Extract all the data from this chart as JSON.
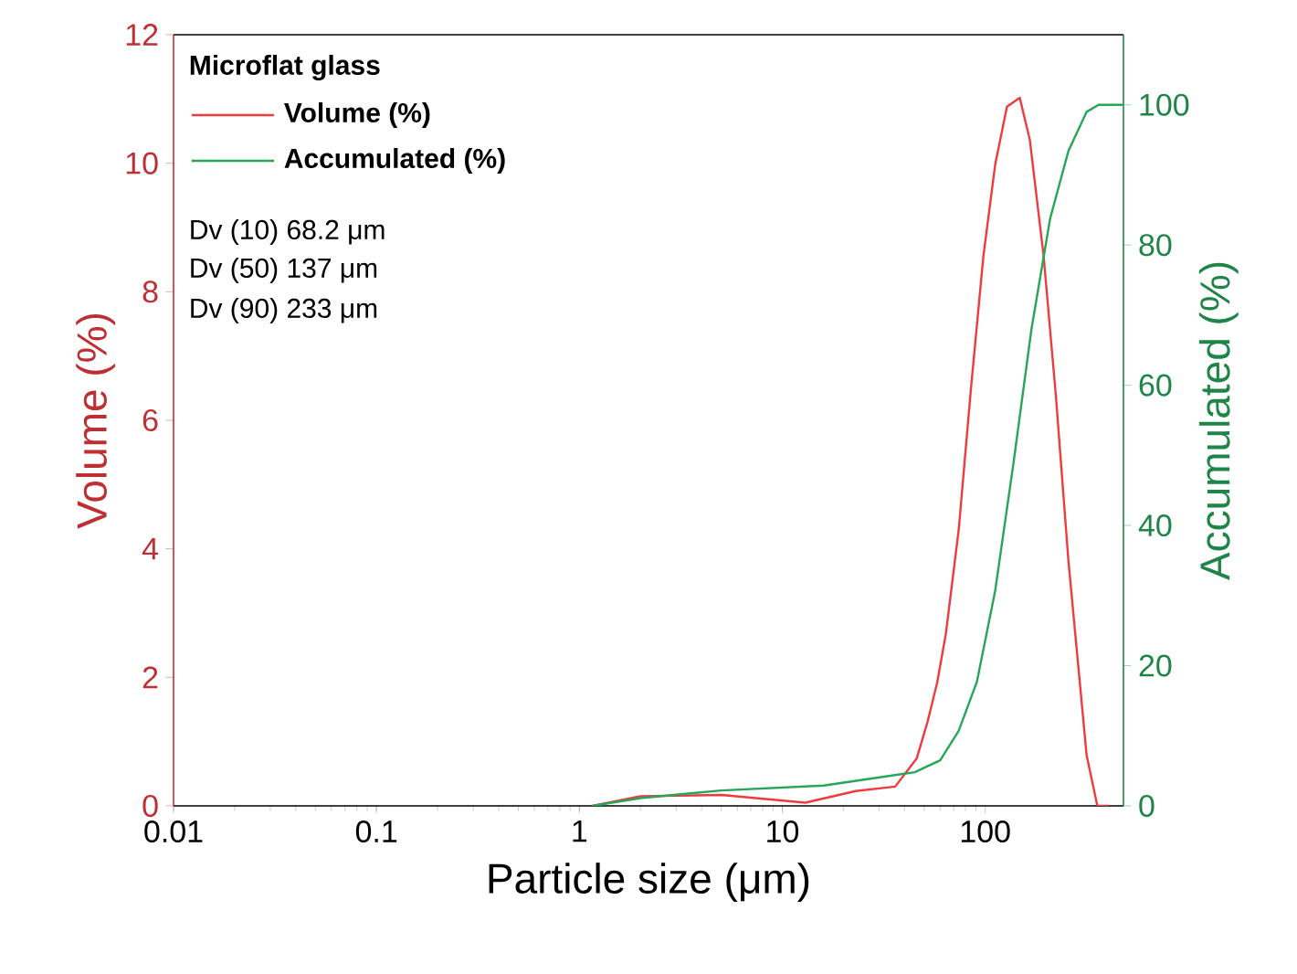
{
  "chart_data": {
    "type": "line",
    "xlabel": "Particle size (μm)",
    "ylabel": "Volume (%)",
    "y2label": "Accumulated (%)",
    "legend_title": "Microflat glass",
    "legend": "top left",
    "log": "x",
    "grid": false,
    "marker": "none",
    "line_style": "solid",
    "xlim": [
      0.01,
      480
    ],
    "xticks": [
      0.01,
      0.1,
      1,
      10,
      100
    ],
    "ylim": [
      0,
      12
    ],
    "yticks": [
      0,
      2,
      4,
      6,
      8,
      10,
      12
    ],
    "y2lim": [
      0,
      110
    ],
    "y2ticks": [
      0,
      20,
      40,
      60,
      80,
      100
    ],
    "series": [
      {
        "name": "Volume (%)",
        "color": "#ee3b40",
        "x": [
          1.16,
          2.0,
          5.0,
          13,
          23,
          36,
          46,
          52,
          58,
          64,
          74,
          85,
          98,
          112,
          128,
          148,
          166,
          194,
          223,
          257,
          316,
          357,
          405
        ],
        "values": [
          0,
          0.15,
          0.17,
          0.05,
          0.23,
          0.3,
          0.74,
          1.31,
          1.92,
          2.68,
          4.29,
          6.48,
          8.56,
          9.98,
          10.88,
          11.02,
          10.36,
          8.56,
          6.38,
          3.82,
          0.79,
          0,
          0
        ]
      },
      {
        "name": "Accumulated (%)",
        "color": "#27a559",
        "axis": "y2",
        "x": [
          1.16,
          2.0,
          5.0,
          16,
          36,
          45,
          60,
          74,
          91,
          112,
          138,
          169,
          209,
          257,
          316,
          362,
          478
        ],
        "values": [
          0,
          1.1,
          2.2,
          2.9,
          4.4,
          4.8,
          6.5,
          10.7,
          17.7,
          30.7,
          49,
          68,
          83.8,
          93.4,
          99,
          100,
          100
        ]
      }
    ],
    "annotations": [
      "Dv (10) 68.2 μm",
      "Dv (50) 137 μm",
      "Dv (90) 233 μm"
    ]
  }
}
